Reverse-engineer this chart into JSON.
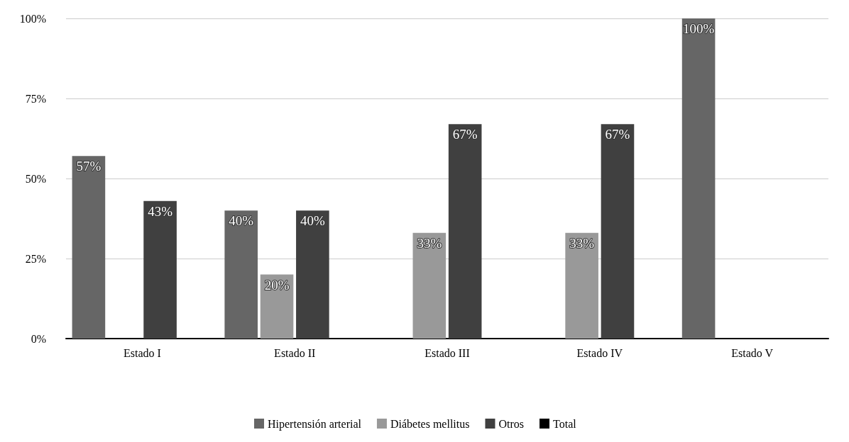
{
  "chart_data": {
    "type": "bar",
    "categories": [
      "Estado I",
      "Estado II",
      "Estado III",
      "Estado IV",
      "Estado V"
    ],
    "series": [
      {
        "name": "Hipertensión arterial",
        "color": "#666666",
        "values": [
          57,
          40,
          null,
          null,
          100
        ],
        "value_labels": [
          "57%",
          "40%",
          null,
          null,
          "100%"
        ]
      },
      {
        "name": "Diábetes mellitus",
        "color": "#999999",
        "values": [
          null,
          20,
          33,
          33,
          null
        ],
        "value_labels": [
          null,
          "20%",
          "33%",
          "33%",
          null
        ]
      },
      {
        "name": "Otros",
        "color": "#404040",
        "values": [
          43,
          40,
          67,
          67,
          null
        ],
        "value_labels": [
          "43%",
          "40%",
          "67%",
          "67%",
          null
        ]
      },
      {
        "name": "Total",
        "color": "#000000",
        "values": [
          null,
          null,
          null,
          null,
          null
        ]
      }
    ],
    "ylim": [
      0,
      100
    ],
    "yticks": [
      {
        "value": 0,
        "label": "0%"
      },
      {
        "value": 25,
        "label": "25%"
      },
      {
        "value": 50,
        "label": "50%"
      },
      {
        "value": 75,
        "label": "75%"
      },
      {
        "value": 100,
        "label": "100%"
      }
    ],
    "grid": "y",
    "legend": "bottom"
  }
}
